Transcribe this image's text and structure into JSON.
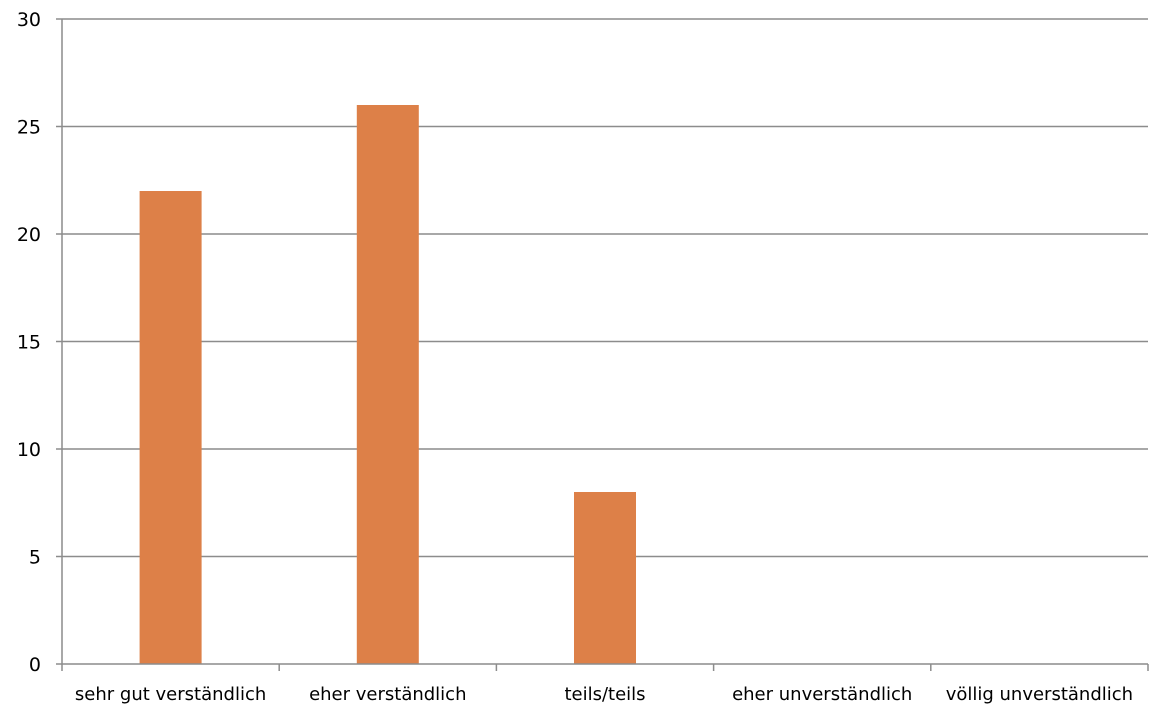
{
  "chart_data": {
    "type": "bar",
    "categories": [
      "sehr gut verständlich",
      "eher verständlich",
      "teils/teils",
      "eher unverständlich",
      "völlig unverständlich"
    ],
    "values": [
      22,
      26,
      8,
      0,
      0
    ],
    "ylim": [
      0,
      30
    ],
    "yticks": [
      "0",
      "5",
      "10",
      "15",
      "20",
      "25",
      "30"
    ],
    "grid": true,
    "legend": "none",
    "bar_color": "#dd8048",
    "grid_color": "#8c8c8c"
  }
}
